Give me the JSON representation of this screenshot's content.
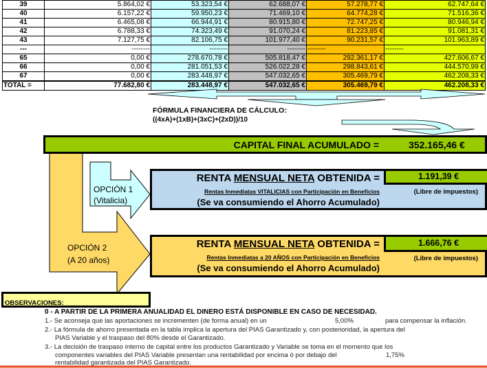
{
  "table": {
    "rows": [
      [
        "39",
        "5.864,02 €",
        "53.323,54 €",
        "62.688,07 €",
        "57.278,77 €",
        "62.747,64 €"
      ],
      [
        "40",
        "6.157,22 €",
        "59.950,23 €",
        "71.469,10 €",
        "64.774,28 €",
        "71.516,36 €"
      ],
      [
        "41",
        "6.465,08 €",
        "66.944,91 €",
        "80.915,80 €",
        "72.747,25 €",
        "80.946,94 €"
      ],
      [
        "42",
        "6.788,33 €",
        "74.323,49 €",
        "91.070,24 €",
        "81.223,85 €",
        "91.081,31 €"
      ],
      [
        "43",
        "7.127,75 €",
        "82.106,75 €",
        "101.977,40 €",
        "90.231,57 €",
        "101.963,89 €"
      ],
      [
        "---",
        "--------",
        "--------",
        "--------",
        "--------",
        "--------"
      ],
      [
        "65",
        "0,00 €",
        "278.670,78 €",
        "505.818,47 €",
        "292.361,17 €",
        "427.606,67 €"
      ],
      [
        "66",
        "0,00 €",
        "281.051,53 €",
        "526.022,28 €",
        "298.843,61 €",
        "444.570,99 €"
      ],
      [
        "67",
        "0,00 €",
        "283.448,97 €",
        "547.032,65 €",
        "305.469,79 €",
        "462.208,33 €"
      ]
    ],
    "total": [
      "TOTAL =",
      "77.682,80 €",
      "283.448,97 €",
      "547.032,65 €",
      "305.469,79 €",
      "462.208,33 €"
    ]
  },
  "formula": {
    "title": "FÓRMULA FINANCIERA DE CÁLCULO:",
    "expr": "((4xA)+(1xB)+(3xC)+(2xD))/10"
  },
  "capital": {
    "label": "CAPITAL FINAL ACUMULADO =",
    "value": "352.165,46 €"
  },
  "option1": {
    "label": "OPCIÓN 1",
    "sub": "(Vitalicia)",
    "renta_pre": "RENTA ",
    "renta_u": "MENSUAL NETA",
    "renta_post": " OBTENIDA  =",
    "value": "1.191,39 €",
    "desc": "Rentas Inmediatas VITALICIAS con Participación en Beneficios",
    "note": "(Se va consumiendo el Ahorro Acumulado)",
    "tax": "(Libre de impuestos)"
  },
  "option2": {
    "label": "OPCIÓN 2",
    "sub": "(A 20 años)",
    "renta_pre": "RENTA ",
    "renta_u": "MENSUAL NETA",
    "renta_post": " OBTENIDA  =",
    "value": "1.666,76 €",
    "desc": "Rentas Inmediatas a 20 AÑOS con Participación en Beneficios",
    "note": "(Se va consumiendo el Ahorro Acumulado)",
    "tax": "(Libre de impuestos)"
  },
  "observaciones": {
    "title": "OBSERVACIONES:",
    "item0": "0 - A PARTIR DE LA PRIMERA ANUALIDAD EL DINERO ESTÁ DISPONIBLE EN CASO DE NECESIDAD.",
    "item1a": "1.- Se aconseja que las aportaciones se incrementen (de forma anual) en un",
    "item1v": "5,00%",
    "item1b": "para compensar la inflación.",
    "item2a": "2.- La fórmula de ahorro presentada en la tabla implica la apertura del PIAS Garantizado y, con posterioridad, la apertura del",
    "item2b": "PIAS Variable y el traspaso del 80% desde el Garantizado.",
    "item3a": "3.- La decisión de traspaso interno de capital entre los productos Garantizado y Variable se toma en el momento que los",
    "item3b": "componentes variables del PIAS Variable presentan una rentabilidad por encima ó por debajo del",
    "item3v": "1,75%",
    "item3c": "rentabilidad garantizada del PIAS Garantizado."
  },
  "colors": {
    "green": "#99cc00",
    "blue": "#bdd7ee",
    "orange": "#ffd966",
    "cyan": "#ccffff",
    "yellow": "#ffff99",
    "accent_line": "#e84c1e"
  }
}
